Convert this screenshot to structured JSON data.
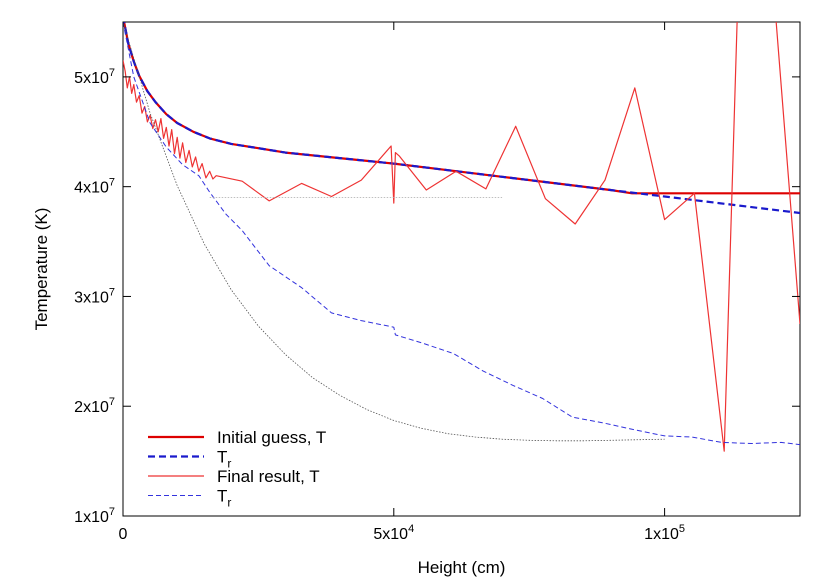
{
  "chart_data": {
    "type": "line",
    "xlabel": "Height (cm)",
    "ylabel": "Temperature (K)",
    "xlim": [
      0,
      125000
    ],
    "ylim": [
      10000000,
      55000000
    ],
    "grid": false,
    "legend_position": "bottom-left",
    "x_ticks": [
      {
        "value": 0,
        "label": "0"
      },
      {
        "value": 50000,
        "label": "5x10",
        "exp": "4"
      },
      {
        "value": 100000,
        "label": "1x10",
        "exp": "5"
      }
    ],
    "y_ticks": [
      {
        "value": 10000000,
        "label": "1x10",
        "exp": "7"
      },
      {
        "value": 20000000,
        "label": "2x10",
        "exp": "7"
      },
      {
        "value": 30000000,
        "label": "3x10",
        "exp": "7"
      },
      {
        "value": 40000000,
        "label": "4x10",
        "exp": "7"
      },
      {
        "value": 50000000,
        "label": "5x10",
        "exp": "7"
      }
    ],
    "series": [
      {
        "name": "Initial guess, T",
        "color": "#dd0000",
        "width": 2.2,
        "dash": "",
        "points": [
          [
            0,
            55500000
          ],
          [
            1000,
            53000000
          ],
          [
            2000,
            51400000
          ],
          [
            3000,
            50100000
          ],
          [
            4500,
            48700000
          ],
          [
            6000,
            47700000
          ],
          [
            8000,
            46600000
          ],
          [
            10000,
            45800000
          ],
          [
            13000,
            45000000
          ],
          [
            16000,
            44400000
          ],
          [
            20000,
            43900000
          ],
          [
            25000,
            43500000
          ],
          [
            30000,
            43100000
          ],
          [
            40000,
            42600000
          ],
          [
            50000,
            42100000
          ],
          [
            60000,
            41500000
          ],
          [
            70000,
            40900000
          ],
          [
            80000,
            40300000
          ],
          [
            90000,
            39700000
          ],
          [
            94000,
            39400000
          ],
          [
            125000,
            39400000
          ]
        ]
      },
      {
        "name": "T",
        "sub": "r",
        "color": "#1a1acc",
        "width": 2.2,
        "dash": "7,4",
        "points": [
          [
            0,
            55500000
          ],
          [
            1000,
            53000000
          ],
          [
            2000,
            51400000
          ],
          [
            3000,
            50100000
          ],
          [
            4500,
            48700000
          ],
          [
            6000,
            47700000
          ],
          [
            8000,
            46600000
          ],
          [
            10000,
            45800000
          ],
          [
            13000,
            45000000
          ],
          [
            16000,
            44400000
          ],
          [
            20000,
            43900000
          ],
          [
            25000,
            43500000
          ],
          [
            30000,
            43100000
          ],
          [
            40000,
            42600000
          ],
          [
            50000,
            42100000
          ],
          [
            60000,
            41500000
          ],
          [
            70000,
            40900000
          ],
          [
            80000,
            40300000
          ],
          [
            90000,
            39700000
          ],
          [
            100000,
            39100000
          ],
          [
            110000,
            38500000
          ],
          [
            125000,
            37600000
          ]
        ]
      },
      {
        "name": "Final result, T",
        "color": "#ee3333",
        "width": 1.2,
        "dash": "",
        "points": [
          [
            0,
            51500000
          ],
          [
            400,
            50500000
          ],
          [
            800,
            49000000
          ],
          [
            1200,
            50000000
          ],
          [
            1600,
            48500000
          ],
          [
            2000,
            49300000
          ],
          [
            2500,
            47700000
          ],
          [
            3000,
            48300000
          ],
          [
            3500,
            46700000
          ],
          [
            4000,
            47300000
          ],
          [
            4500,
            45900000
          ],
          [
            5000,
            46500000
          ],
          [
            5500,
            45300000
          ],
          [
            6000,
            46100000
          ],
          [
            6500,
            45000000
          ],
          [
            7000,
            46200000
          ],
          [
            7500,
            44400000
          ],
          [
            8000,
            45400000
          ],
          [
            8500,
            43700000
          ],
          [
            9000,
            45200000
          ],
          [
            9500,
            43000000
          ],
          [
            10000,
            44500000
          ],
          [
            10500,
            42600000
          ],
          [
            11000,
            44000000
          ],
          [
            11600,
            42200000
          ],
          [
            12200,
            43300000
          ],
          [
            12800,
            41800000
          ],
          [
            13400,
            42700000
          ],
          [
            14000,
            41400000
          ],
          [
            14600,
            42100000
          ],
          [
            15300,
            40800000
          ],
          [
            16000,
            41400000
          ],
          [
            16600,
            40700000
          ],
          [
            17200,
            41000000
          ],
          [
            22000,
            40500000
          ],
          [
            27000,
            38700000
          ],
          [
            33000,
            40300000
          ],
          [
            38500,
            39100000
          ],
          [
            44000,
            40600000
          ],
          [
            49500,
            43700000
          ],
          [
            50000,
            38500000
          ],
          [
            50300,
            43100000
          ],
          [
            51000,
            42800000
          ],
          [
            56000,
            39700000
          ],
          [
            61500,
            41400000
          ],
          [
            67000,
            39800000
          ],
          [
            72500,
            45500000
          ],
          [
            78000,
            38900000
          ],
          [
            83500,
            36600000
          ],
          [
            89000,
            40600000
          ],
          [
            94500,
            49000000
          ],
          [
            100000,
            37000000
          ],
          [
            105500,
            39400000
          ],
          [
            111000,
            15900000
          ],
          [
            114000,
            65000000
          ],
          [
            119000,
            65000000
          ],
          [
            125000,
            27500000
          ]
        ]
      },
      {
        "name": "T",
        "sub": "r",
        "color": "#3333dd",
        "width": 1.0,
        "dash": "5,3",
        "points": [
          [
            0,
            55000000
          ],
          [
            2000,
            50000000
          ],
          [
            5000,
            45800000
          ],
          [
            8000,
            43600000
          ],
          [
            11000,
            42000000
          ],
          [
            14000,
            41000000
          ],
          [
            16000,
            39500000
          ],
          [
            19000,
            37500000
          ],
          [
            22000,
            36000000
          ],
          [
            27000,
            32800000
          ],
          [
            33000,
            30800000
          ],
          [
            38500,
            28500000
          ],
          [
            44000,
            27800000
          ],
          [
            50000,
            27200000
          ],
          [
            50300,
            26500000
          ],
          [
            55000,
            25800000
          ],
          [
            61000,
            24800000
          ],
          [
            66500,
            23200000
          ],
          [
            72000,
            21900000
          ],
          [
            77500,
            20700000
          ],
          [
            83000,
            19000000
          ],
          [
            88500,
            18500000
          ],
          [
            94000,
            17900000
          ],
          [
            100000,
            17300000
          ],
          [
            105000,
            17200000
          ],
          [
            110500,
            16700000
          ],
          [
            116000,
            16600000
          ],
          [
            121500,
            16700000
          ],
          [
            125000,
            16500000
          ]
        ]
      },
      {
        "name": "",
        "color": "#555555",
        "width": 0.8,
        "dash": "1.5,1.5",
        "points": [
          [
            0,
            55000000
          ],
          [
            5000,
            46700000
          ],
          [
            10000,
            40100000
          ],
          [
            15000,
            34800000
          ],
          [
            20000,
            30600000
          ],
          [
            25000,
            27300000
          ],
          [
            30000,
            24700000
          ],
          [
            35000,
            22600000
          ],
          [
            40000,
            21000000
          ],
          [
            45000,
            19700000
          ],
          [
            50000,
            18700000
          ],
          [
            55000,
            18000000
          ],
          [
            60000,
            17500000
          ],
          [
            65000,
            17200000
          ],
          [
            70000,
            17000000
          ],
          [
            75000,
            16900000
          ],
          [
            80000,
            16850000
          ],
          [
            85000,
            16850000
          ],
          [
            90000,
            16900000
          ],
          [
            100000,
            17000000
          ]
        ]
      },
      {
        "name": "",
        "color": "#aaaaaa",
        "width": 0.8,
        "dash": "1.5,1.5",
        "points": [
          [
            16000,
            39000000
          ],
          [
            70000,
            39000000
          ]
        ]
      }
    ]
  }
}
